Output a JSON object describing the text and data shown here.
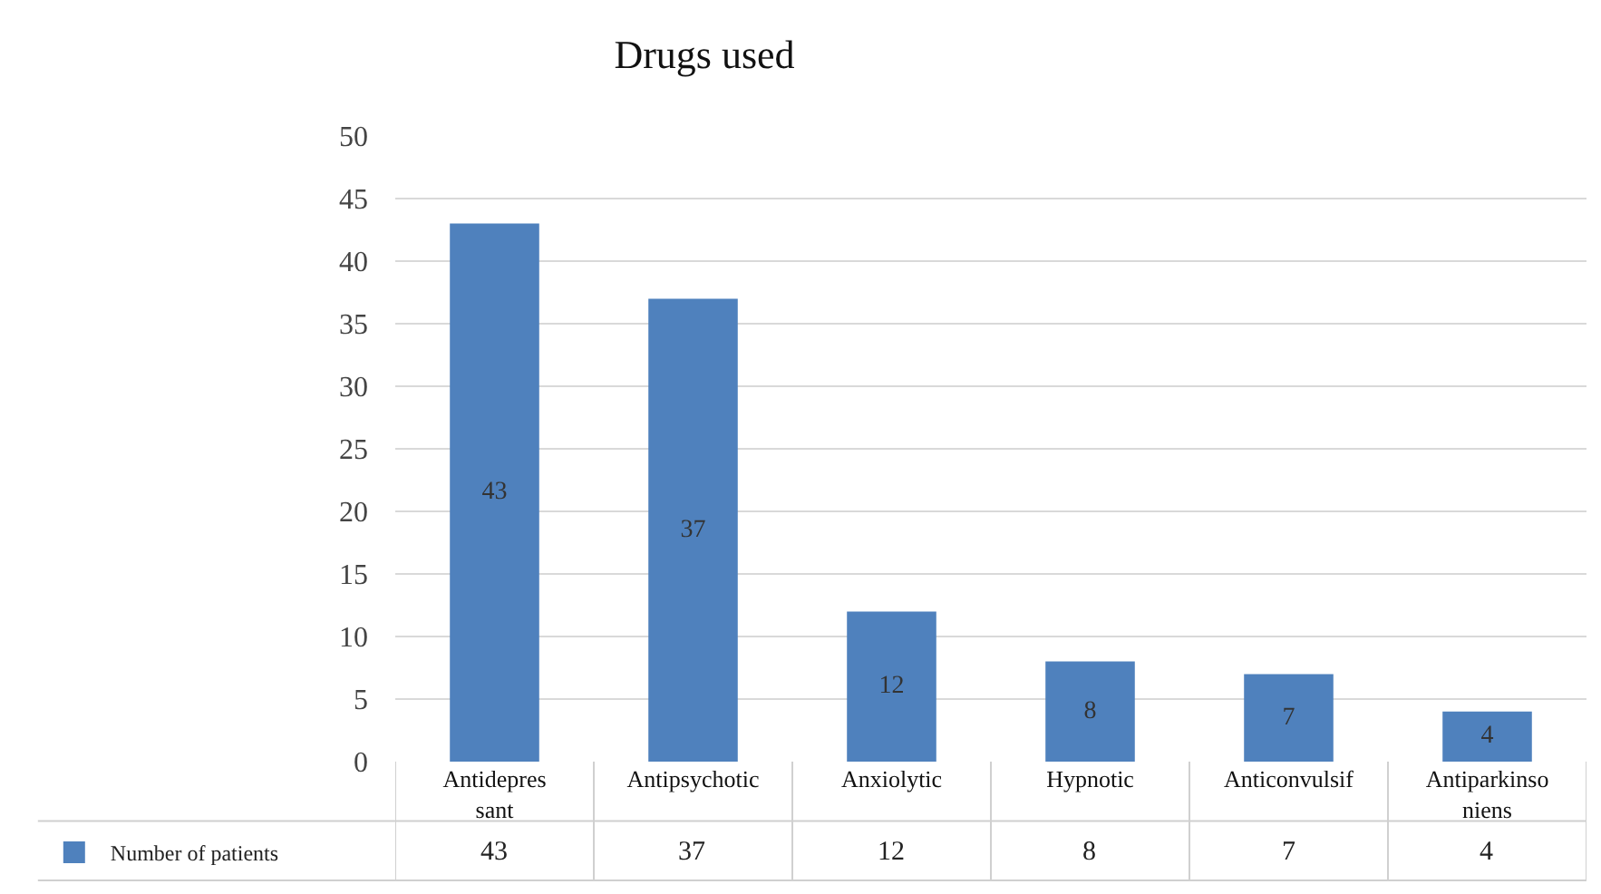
{
  "chart_data": {
    "type": "bar",
    "title": "Drugs used",
    "categories": [
      "Antidepres sant",
      "Antipsychotic",
      "Anxiolytic",
      "Hypnotic",
      "Anticonvulsif",
      "Antiparkinso niens"
    ],
    "series": [
      {
        "name": "Number of patients",
        "color": "#4f81bd",
        "values": [
          43,
          37,
          12,
          8,
          7,
          4
        ]
      }
    ],
    "ylim": [
      0,
      50
    ],
    "yticks": [
      0,
      5,
      10,
      15,
      20,
      25,
      30,
      35,
      40,
      45,
      50
    ],
    "grid": "y",
    "legend": "bottom left",
    "data_labels": true,
    "annotations": [
      "43",
      "37",
      "12",
      "8",
      "7",
      "4"
    ]
  }
}
